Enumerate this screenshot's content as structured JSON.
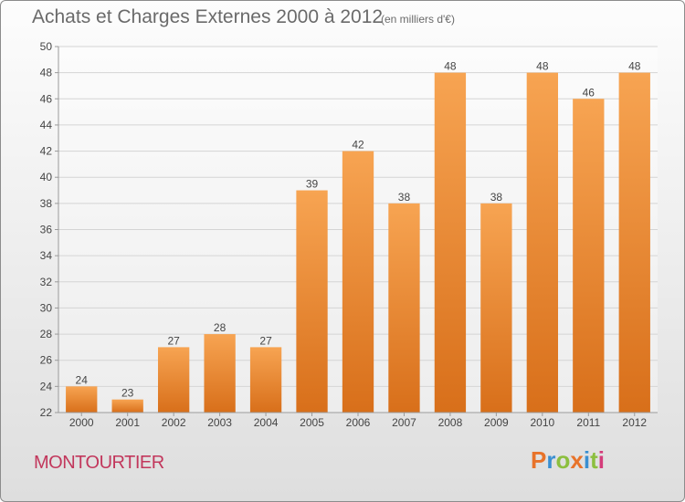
{
  "header": {
    "title": "Achats et Charges Externes 2000 à 2012",
    "subtitle": "(en milliers d'€)"
  },
  "footer": {
    "place": "MONTOURTIER",
    "brand": "Proxiti",
    "brand_colors": [
      "#e8732a",
      "#3a8fd1",
      "#8cbf3f",
      "#e8732a",
      "#3a8fd1",
      "#8cbf3f",
      "#d43c7a"
    ]
  },
  "colors": {
    "bar_top": "#f7a452",
    "bar_bottom": "#d86f1a",
    "grid": "#d4d4d4",
    "axis_text": "#444444"
  },
  "chart_data": {
    "type": "bar",
    "title": "Achats et Charges Externes 2000 à 2012",
    "subtitle": "(en milliers d'€)",
    "xlabel": "",
    "ylabel": "",
    "categories": [
      "2000",
      "2001",
      "2002",
      "2003",
      "2004",
      "2005",
      "2006",
      "2007",
      "2008",
      "2009",
      "2010",
      "2011",
      "2012"
    ],
    "values": [
      24,
      23,
      27,
      28,
      27,
      39,
      42,
      38,
      48,
      38,
      48,
      46,
      48
    ],
    "ylim": [
      22,
      50
    ],
    "yticks": [
      22,
      24,
      26,
      28,
      30,
      32,
      34,
      36,
      38,
      40,
      42,
      44,
      46,
      48,
      50
    ],
    "grid": true,
    "data_labels": true
  }
}
